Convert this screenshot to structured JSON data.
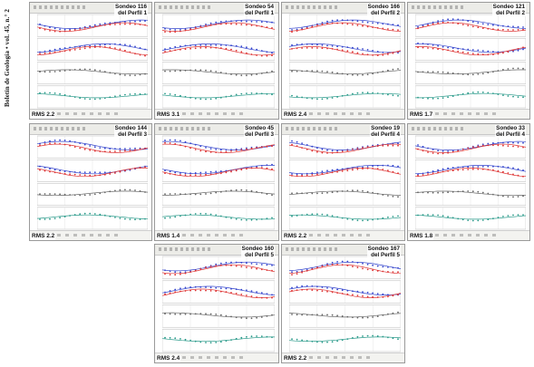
{
  "journal_title": "Boletín de Geología • vol. 45, n.° 2",
  "panels": [
    {
      "sondeo": "Sondeo 116",
      "perfil": "del Perfil 1",
      "rms": "RMS 2.2"
    },
    {
      "sondeo": "Sondeo 54",
      "perfil": "del Perfil 1",
      "rms": "RMS 3.1"
    },
    {
      "sondeo": "Sondeo 166",
      "perfil": "del Perfil 2",
      "rms": "RMS 2.4"
    },
    {
      "sondeo": "Sondeo 121",
      "perfil": "del Perfil 2",
      "rms": "RMS 1.7"
    },
    {
      "sondeo": "Sondeo 144",
      "perfil": "del Perfil 3",
      "rms": "RMS 2.2"
    },
    {
      "sondeo": "Sondeo 45",
      "perfil": "del Perfil 3",
      "rms": "RMS 1.4"
    },
    {
      "sondeo": "Sondeo 19",
      "perfil": "del Perfil 4",
      "rms": "RMS 2.2"
    },
    {
      "sondeo": "Sondeo 33",
      "perfil": "del Perfil 4",
      "rms": "RMS 1.8"
    },
    {
      "sondeo": "Sondeo 160",
      "perfil": "del Perfil 5",
      "rms": "RMS 2.4"
    },
    {
      "sondeo": "Sondeo 167",
      "perfil": "del Perfil 5",
      "rms": "RMS 2.2"
    }
  ],
  "colors": {
    "xy_series": "#3344cc",
    "yx_series": "#dd3333",
    "tipper_series": "#666666",
    "phase_series": "#2a9a8a",
    "grid": "#dddddd"
  }
}
